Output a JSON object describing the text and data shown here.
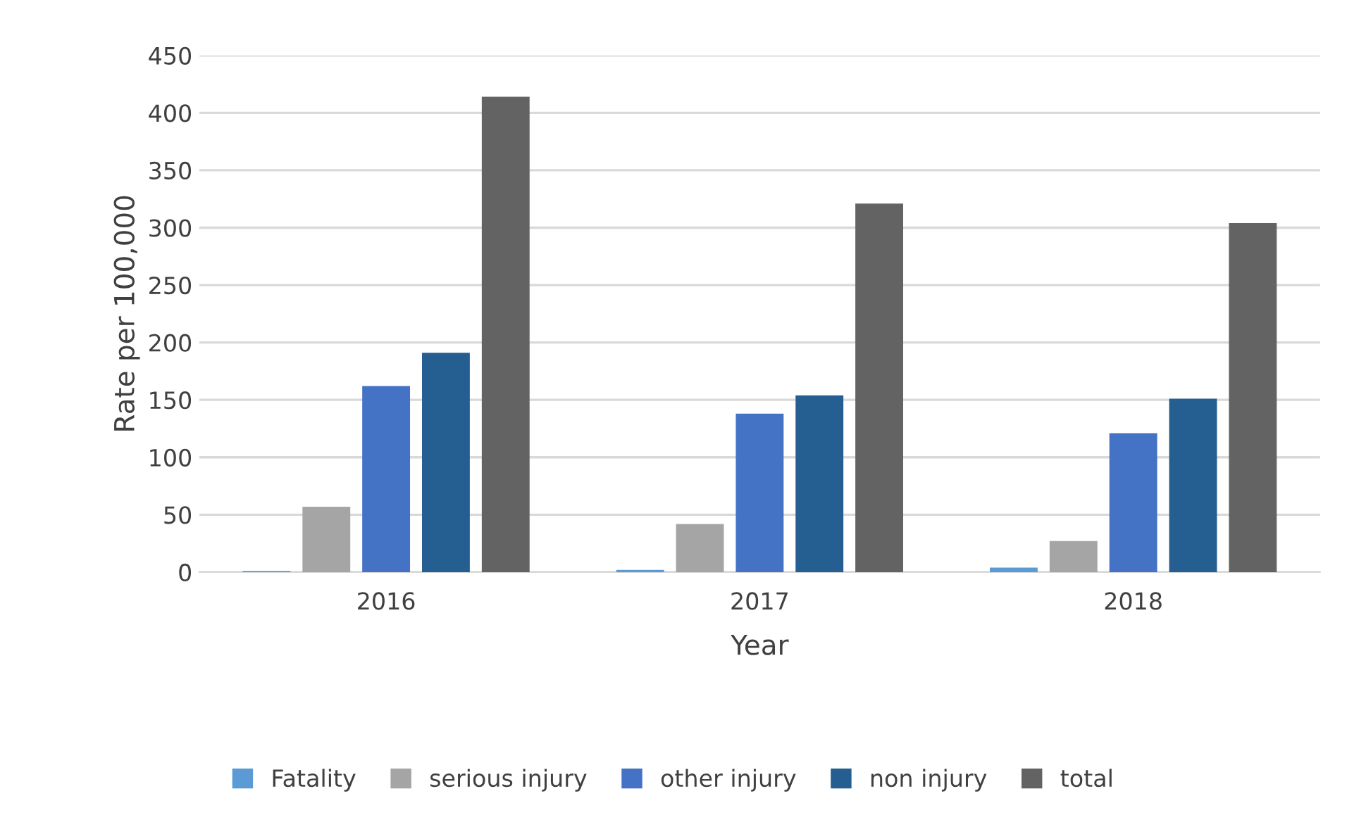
{
  "chart_data": {
    "type": "bar",
    "xlabel": "Year",
    "ylabel": "Rate per 100,000",
    "categories": [
      "2016",
      "2017",
      "2018"
    ],
    "series": [
      {
        "name": "Fatality",
        "color": "#5b9bd5",
        "values": [
          1,
          2,
          4
        ]
      },
      {
        "name": "serious injury",
        "color": "#a5a5a5",
        "values": [
          57,
          42,
          27
        ]
      },
      {
        "name": "other injury",
        "color": "#4472c4",
        "values": [
          162,
          138,
          121
        ]
      },
      {
        "name": "non injury",
        "color": "#255e91",
        "values": [
          191,
          154,
          151
        ]
      },
      {
        "name": "total",
        "color": "#636363",
        "values": [
          414,
          321,
          304
        ]
      }
    ],
    "ylim": [
      0,
      450
    ],
    "yticks": [
      0,
      50,
      100,
      150,
      200,
      250,
      300,
      350,
      400,
      450
    ],
    "grid": "y",
    "legend": "bottom"
  }
}
